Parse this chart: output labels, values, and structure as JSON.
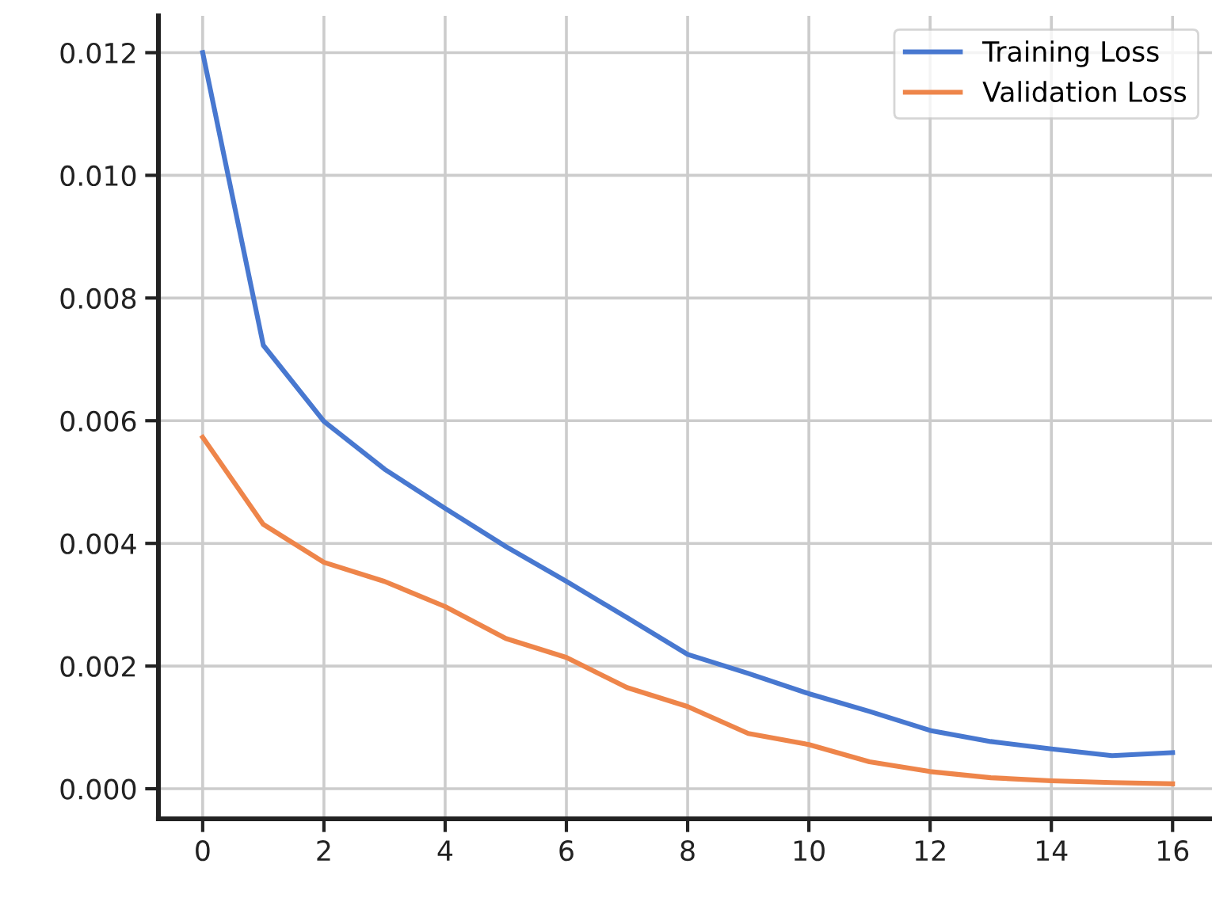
{
  "chart_data": {
    "type": "line",
    "x": [
      0,
      1,
      2,
      3,
      4,
      5,
      6,
      7,
      8,
      9,
      10,
      11,
      12,
      13,
      14,
      15,
      16
    ],
    "series": [
      {
        "name": "Training Loss",
        "color": "#4878d0",
        "values": [
          0.012,
          0.00723,
          0.00599,
          0.00521,
          0.00457,
          0.00395,
          0.00338,
          0.00279,
          0.00219,
          0.00188,
          0.00155,
          0.00126,
          0.00095,
          0.00077,
          0.00065,
          0.00054,
          0.00059
        ]
      },
      {
        "name": "Validation Loss",
        "color": "#ee854a",
        "values": [
          0.00573,
          0.00431,
          0.00369,
          0.00338,
          0.00297,
          0.00245,
          0.00214,
          0.00165,
          0.00134,
          0.0009,
          0.00072,
          0.00044,
          0.00028,
          0.00018,
          0.00013,
          0.0001,
          8e-05
        ]
      }
    ],
    "xlim": [
      -0.73,
      16.65
    ],
    "xticks": [
      0,
      2,
      4,
      6,
      8,
      10,
      12,
      14,
      16
    ],
    "ylim": [
      -0.00049,
      0.0126
    ],
    "yticks": [
      {
        "value": 0,
        "label": "0.000"
      },
      {
        "value": 0.002,
        "label": "0.002"
      },
      {
        "value": 0.004,
        "label": "0.004"
      },
      {
        "value": 0.006,
        "label": "0.006"
      },
      {
        "value": 0.008,
        "label": "0.008"
      },
      {
        "value": 0.01,
        "label": "0.010"
      },
      {
        "value": 0.012,
        "label": "0.012"
      }
    ],
    "grid": true,
    "legend": "top right",
    "marker": "none",
    "line_style": "solid"
  }
}
